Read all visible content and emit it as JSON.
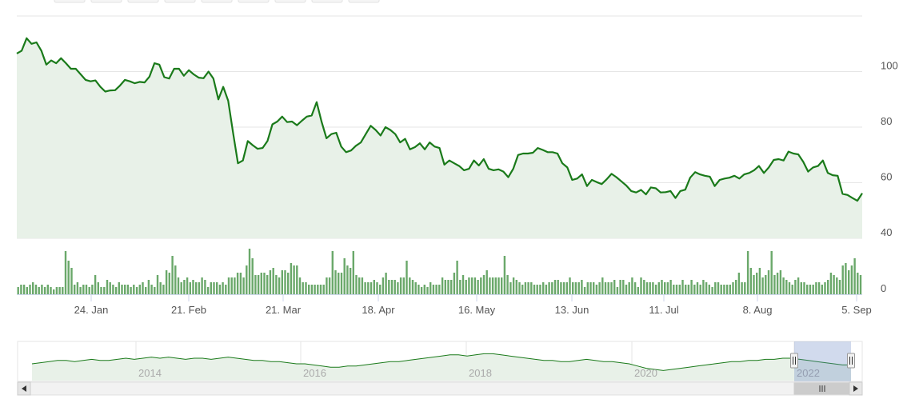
{
  "chart_data": [
    {
      "type": "area",
      "name": "price",
      "x_ticks": [
        "24. Jan",
        "21. Feb",
        "21. Mar",
        "18. Apr",
        "16. May",
        "13. Jun",
        "11. Jul",
        "8. Aug",
        "5. Sep"
      ],
      "y_ticks": [
        100,
        80,
        60,
        40
      ],
      "ylim": [
        40,
        120
      ],
      "grid": true,
      "values": [
        106.5,
        107.5,
        112,
        110,
        110.5,
        107.5,
        102.5,
        104,
        103,
        104.8,
        103,
        101,
        101,
        99,
        97,
        96.5,
        96.8,
        94.5,
        92.8,
        93.2,
        93.3,
        95,
        97,
        96.5,
        95.8,
        96.3,
        96.1,
        98.2,
        103,
        102.5,
        98,
        97.5,
        101,
        101,
        98.5,
        100.5,
        99,
        97.8,
        97.6,
        100,
        97.5,
        90,
        94.5,
        89.5,
        78,
        67,
        68,
        75,
        73.5,
        72.2,
        72.5,
        75,
        81,
        82,
        83.8,
        81.8,
        82,
        80.7,
        82.3,
        83.8,
        84.2,
        89,
        82,
        76,
        77.5,
        78,
        73,
        71,
        71.6,
        73.3,
        74.5,
        77.5,
        80.5,
        79,
        77,
        80,
        79,
        77.5,
        74.5,
        75.8,
        72,
        72.8,
        74.2,
        72,
        74.5,
        73,
        72.5,
        66.5,
        68,
        67,
        66,
        64.5,
        65,
        68,
        66.2,
        68.5,
        65,
        64.5,
        64.8,
        64,
        62,
        65,
        70,
        70.5,
        70.5,
        70.8,
        72.5,
        71.8,
        71,
        71,
        70.5,
        67,
        65.5,
        61,
        61.5,
        63,
        58.8,
        61,
        60.2,
        59.5,
        61.2,
        63.2,
        62,
        60.5,
        59,
        57,
        56.5,
        57.4,
        55.8,
        58.3,
        58,
        56.5,
        56.6,
        57,
        54.5,
        57,
        57.5,
        61.8,
        63.8,
        63,
        62.5,
        62.2,
        58.8,
        61,
        61.5,
        61.8,
        62.5,
        61.5,
        63,
        63.5,
        64.5,
        66,
        63.5,
        65.5,
        68.2,
        68.5,
        68,
        71.2,
        70.5,
        70.2,
        67.5,
        64,
        65.5,
        66,
        68,
        63.5,
        62.7,
        62.5,
        56,
        55.6,
        54.5,
        53.5,
        56.2
      ]
    },
    {
      "type": "bar",
      "name": "volume",
      "y_ticks": [
        0
      ],
      "values": [
        3,
        4,
        4,
        3,
        4,
        5,
        4,
        3,
        4,
        3,
        4,
        3,
        2,
        3,
        3,
        3,
        18,
        14,
        11,
        4,
        5,
        3,
        4,
        4,
        3,
        4,
        8,
        5,
        3,
        3,
        6,
        5,
        4,
        3,
        5,
        4,
        4,
        4,
        3,
        4,
        3,
        4,
        5,
        3,
        6,
        4,
        3,
        8,
        5,
        4,
        10,
        9,
        16,
        12,
        7,
        5,
        6,
        7,
        5,
        6,
        5,
        5,
        7,
        6,
        3,
        5,
        5,
        5,
        4,
        5,
        4,
        7,
        7,
        7,
        9,
        9,
        7,
        12,
        19,
        15,
        8,
        8,
        9,
        9,
        8,
        10,
        11,
        8,
        7,
        10,
        10,
        9,
        13,
        12,
        12,
        7,
        5,
        5,
        4,
        4,
        4,
        4,
        4,
        4,
        7,
        7,
        18,
        10,
        9,
        9,
        15,
        12,
        11,
        18,
        8,
        7,
        7,
        5,
        5,
        5,
        6,
        5,
        4,
        7,
        9,
        6,
        6,
        6,
        5,
        7,
        7,
        14,
        7,
        6,
        5,
        4,
        3,
        4,
        3,
        5,
        4,
        4,
        4,
        7,
        6,
        6,
        6,
        9,
        14,
        6,
        8,
        6,
        7,
        7,
        7,
        6,
        7,
        8,
        10,
        7,
        7,
        7,
        7,
        7,
        16,
        8,
        5,
        7,
        6,
        5,
        4,
        5,
        5,
        5,
        4,
        4,
        4,
        5,
        4,
        5,
        5,
        6,
        6,
        5,
        5,
        5,
        7,
        5,
        5,
        5,
        6,
        3,
        5,
        5,
        5,
        4,
        5,
        7,
        5,
        5,
        5,
        6,
        3,
        6,
        6,
        4,
        5,
        7,
        5,
        3,
        7,
        6,
        5,
        5,
        5,
        4,
        5,
        6,
        5,
        5,
        6,
        4,
        4,
        4,
        6,
        4,
        4,
        6,
        4,
        5,
        4,
        6,
        5,
        4,
        3,
        5,
        5,
        4,
        4,
        4,
        4,
        5,
        6,
        9,
        5,
        5,
        18,
        11,
        8,
        9,
        11,
        7,
        8,
        10,
        18,
        8,
        9,
        10,
        7,
        6,
        5,
        4,
        6,
        7,
        5,
        5,
        4,
        4,
        4,
        5,
        5,
        4,
        5,
        6,
        9,
        8,
        7,
        6,
        12,
        13,
        10,
        12,
        15,
        9,
        8
      ]
    },
    {
      "type": "line",
      "name": "navigator",
      "x_ticks": [
        "2014",
        "2016",
        "2018",
        "2020",
        "2022"
      ],
      "values": [
        55,
        56,
        57,
        58,
        58,
        57,
        58,
        59,
        58,
        58,
        59,
        60,
        59,
        60,
        61,
        60,
        61,
        60,
        59,
        60,
        60,
        59,
        60,
        61,
        60,
        59,
        58,
        58,
        57,
        57,
        56,
        55,
        55,
        54,
        53,
        52,
        52,
        53,
        53,
        54,
        55,
        56,
        57,
        57,
        58,
        59,
        60,
        61,
        62,
        63,
        63,
        62,
        63,
        64,
        64,
        63,
        62,
        61,
        60,
        59,
        58,
        58,
        57,
        57,
        58,
        59,
        58,
        57,
        57,
        56,
        55,
        53,
        51,
        50,
        49,
        50,
        51,
        52,
        53,
        54,
        55,
        56,
        57,
        57,
        58,
        58,
        59,
        59,
        60,
        60,
        59,
        58,
        57,
        56,
        55,
        54,
        54
      ]
    }
  ]
}
